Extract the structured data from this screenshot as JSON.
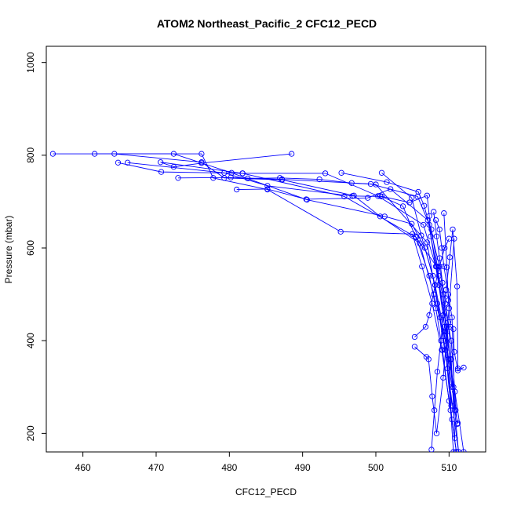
{
  "chart_data": {
    "type": "line",
    "title": "ATOM2 Northeast_Pacific_2 CFC12_PECD",
    "xlabel": "CFC12_PECD",
    "ylabel": "Pressure (mbar)",
    "xlim": [
      455,
      515
    ],
    "ylim": [
      1035,
      160
    ],
    "y_reversed": true,
    "grid": false,
    "legend": "none",
    "x_ticks": [
      460,
      470,
      480,
      490,
      500,
      510
    ],
    "x_tick_labels": [
      "460",
      "470",
      "480",
      "490",
      "500",
      "510"
    ],
    "y_ticks": [
      200,
      400,
      600,
      800,
      1000
    ],
    "y_tick_labels": [
      "200",
      "400",
      "600",
      "800",
      "1000"
    ],
    "series_color": "#0000ff",
    "marker": "open-circle",
    "series": [
      {
        "x": [
          488.5,
          476.2,
          472.4,
          470.6,
          481.8,
          495.7,
          505.5,
          507.3,
          508.2,
          509.1,
          510.0,
          511.0
        ],
        "y": [
          803,
          783,
          775,
          785,
          761,
          711,
          623,
          540,
          470,
          380,
          270,
          160
        ]
      },
      {
        "x": [
          455.9,
          472.4,
          480.3,
          490.6,
          501.2,
          504.9,
          506.7,
          508.1,
          509.3,
          510.4
        ],
        "y": [
          803,
          803,
          762,
          704,
          668,
          652,
          600,
          520,
          420,
          300
        ]
      },
      {
        "x": [
          461.6,
          476.2,
          477.8,
          485.2,
          495.2,
          505.0,
          506.3,
          507.7,
          509.0,
          510.2,
          511.0
        ],
        "y": [
          803,
          803,
          751,
          726,
          635,
          630,
          560,
          480,
          380,
          250,
          160
        ]
      },
      {
        "x": [
          464.3,
          476.2,
          479.3,
          487.2,
          497.0,
          500.6,
          506.0,
          507.9,
          509.5,
          510.8,
          512.0
        ],
        "y": [
          803,
          785,
          751,
          747,
          713,
          668,
          610,
          500,
          400,
          290,
          160
        ]
      },
      {
        "x": [
          464.8,
          470.7,
          481.8,
          493.1,
          500.3,
          506.5,
          508.2,
          509.7,
          511.3
        ],
        "y": [
          784,
          764,
          761,
          761,
          712,
          650,
          560,
          430,
          160
        ]
      },
      {
        "x": [
          466.1,
          479.3,
          485.2,
          496.8,
          500.8,
          503.7,
          505.4,
          508.3,
          509.7,
          510.9
        ],
        "y": [
          784,
          762,
          734,
          712,
          711,
          690,
          625,
          560,
          420,
          250
        ]
      },
      {
        "x": [
          473.0,
          480.2,
          487.2,
          499.3,
          505.7,
          507.6,
          508.6,
          510.3,
          511.1
        ],
        "y": [
          751,
          752,
          748,
          738,
          711,
          640,
          540,
          400,
          220
        ]
      },
      {
        "x": [
          481.0,
          485.2,
          490.5,
          498.9,
          502.0,
          507.1,
          508.3,
          509.4,
          510.2,
          510.6
        ],
        "y": [
          726,
          727,
          705,
          708,
          727,
          660,
          560,
          430,
          360,
          300
        ]
      },
      {
        "x": [
          482.5,
          486.9,
          492.3,
          496.7,
          500.0,
          507.0,
          508.4,
          509.8,
          511.3
        ],
        "y": [
          750,
          751,
          748,
          740,
          737,
          612,
          480,
          340,
          160
        ]
      },
      {
        "x": [
          500.8,
          504.9,
          506.2,
          507.8,
          508.8,
          509.5,
          510.4,
          511.0
        ],
        "y": [
          762,
          708,
          627,
          540,
          450,
          380,
          230,
          160
        ]
      },
      {
        "x": [
          495.3,
          501.5,
          505.8,
          506.6,
          507.3,
          508.7,
          509.2,
          509.9,
          510.3
        ],
        "y": [
          762,
          742,
          721,
          691,
          650,
          560,
          500,
          360,
          260
        ]
      },
      {
        "x": [
          500.6,
          504.6,
          507.0,
          507.3,
          507.5,
          508.6,
          509.5,
          510.6
        ],
        "y": [
          712,
          698,
          713,
          669,
          625,
          520,
          420,
          160
        ]
      },
      {
        "x": [
          505.3,
          506.9,
          507.2,
          507.7,
          508.3,
          509.2,
          510.0,
          510.7
        ],
        "y": [
          387,
          365,
          360,
          280,
          200,
          320,
          470,
          620
        ]
      },
      {
        "x": [
          505.3,
          506.8,
          507.3,
          508.1,
          508.7,
          509.4,
          510.0
        ],
        "y": [
          408,
          430,
          455,
          520,
          560,
          600,
          620
        ]
      },
      {
        "x": [
          507.6,
          508.0,
          508.4,
          508.9,
          509.2,
          509.6,
          510.1,
          510.5,
          511.1,
          511.2
        ],
        "y": [
          165,
          250,
          333,
          400,
          455,
          510,
          580,
          640,
          517,
          340
        ]
      },
      {
        "x": [
          509.3,
          509.7,
          509.9,
          510.2,
          510.6,
          510.7,
          511.2,
          512.0
        ],
        "y": [
          675,
          558,
          487,
          430,
          425,
          376,
          336,
          342
        ]
      },
      {
        "x": [
          508.2,
          508.7,
          509.0,
          509.3,
          509.9,
          510.4,
          510.8,
          511.2
        ],
        "y": [
          660,
          640,
          600,
          560,
          500,
          450,
          250,
          222
        ]
      },
      {
        "x": [
          507.9,
          508.3,
          508.7,
          509.1,
          509.5,
          509.9,
          510.3,
          510.8
        ],
        "y": [
          678,
          625,
          578,
          525,
          480,
          440,
          360,
          190
        ]
      }
    ]
  }
}
